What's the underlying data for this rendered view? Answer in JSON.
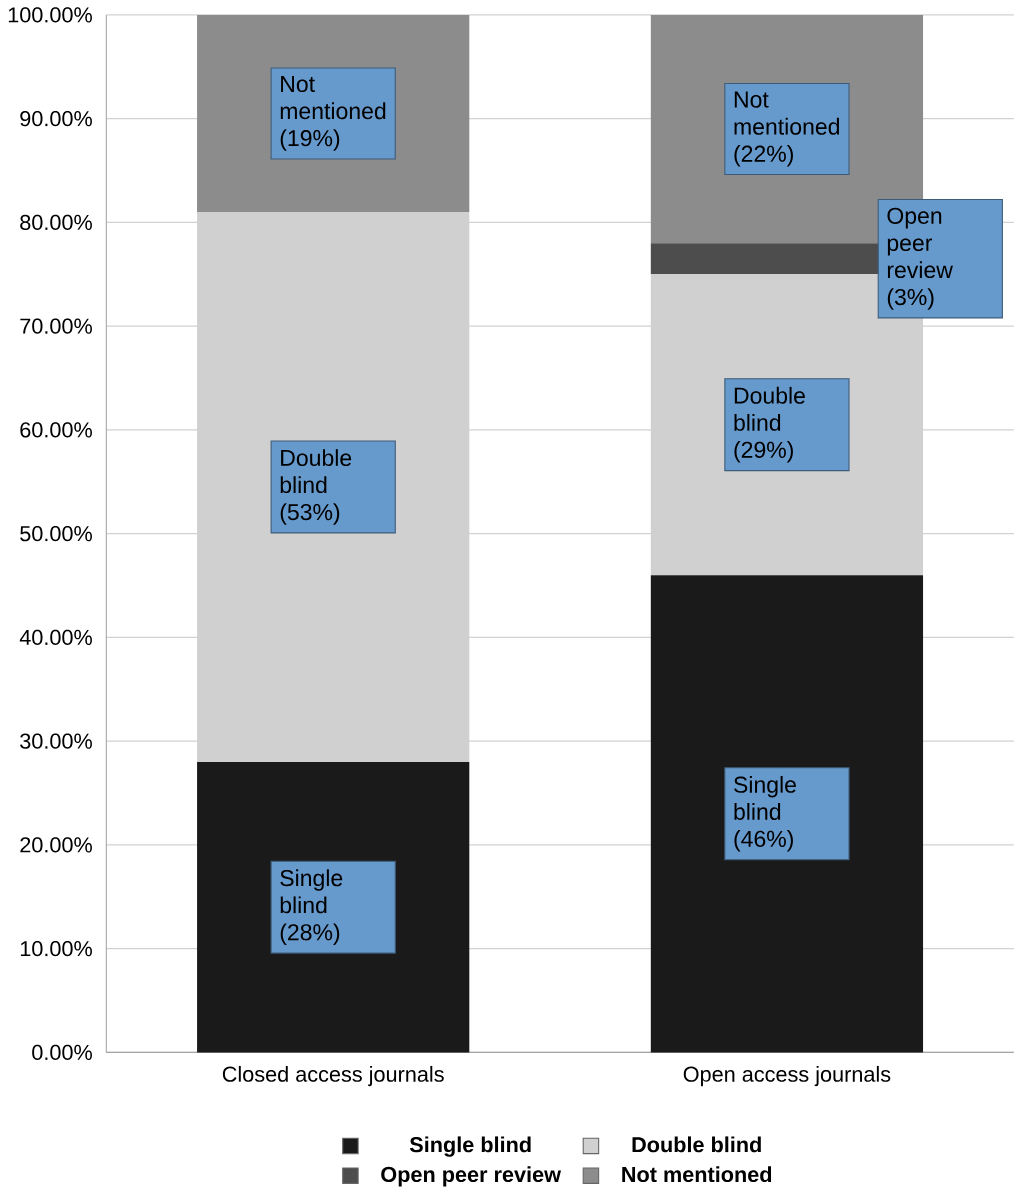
{
  "chart_data": {
    "type": "bar",
    "stacked": true,
    "categories": [
      "Closed access journals",
      "Open access journals"
    ],
    "series": [
      {
        "name": "Single blind",
        "color": "#1a1a1a",
        "values": [
          28,
          46
        ],
        "value_labels": [
          "Single blind (28%)",
          "Single blind (46%)"
        ]
      },
      {
        "name": "Double blind",
        "color": "#d0d0d0",
        "values": [
          53,
          29
        ],
        "value_labels": [
          "Double blind (53%)",
          "Double blind (29%)"
        ]
      },
      {
        "name": "Open peer review",
        "color": "#4d4d4d",
        "values": [
          0,
          3
        ],
        "value_labels": [
          null,
          "Open peer review (3%)"
        ]
      },
      {
        "name": "Not mentioned",
        "color": "#8c8c8c",
        "values": [
          19,
          22
        ],
        "value_labels": [
          "Not mentioned (19%)",
          "Not mentioned (22%)"
        ]
      }
    ],
    "ylim": [
      0,
      100
    ],
    "yticks": [
      {
        "value": 0,
        "label": "0.00%"
      },
      {
        "value": 10,
        "label": "10.00%"
      },
      {
        "value": 20,
        "label": "20.00%"
      },
      {
        "value": 30,
        "label": "30.00%"
      },
      {
        "value": 40,
        "label": "40.00%"
      },
      {
        "value": 50,
        "label": "50.00%"
      },
      {
        "value": 60,
        "label": "60.00%"
      },
      {
        "value": 70,
        "label": "70.00%"
      },
      {
        "value": 80,
        "label": "80.00%"
      },
      {
        "value": 90,
        "label": "90.00%"
      },
      {
        "value": 100,
        "label": "100.00%"
      }
    ],
    "grid": "y",
    "legend": "bottom"
  }
}
